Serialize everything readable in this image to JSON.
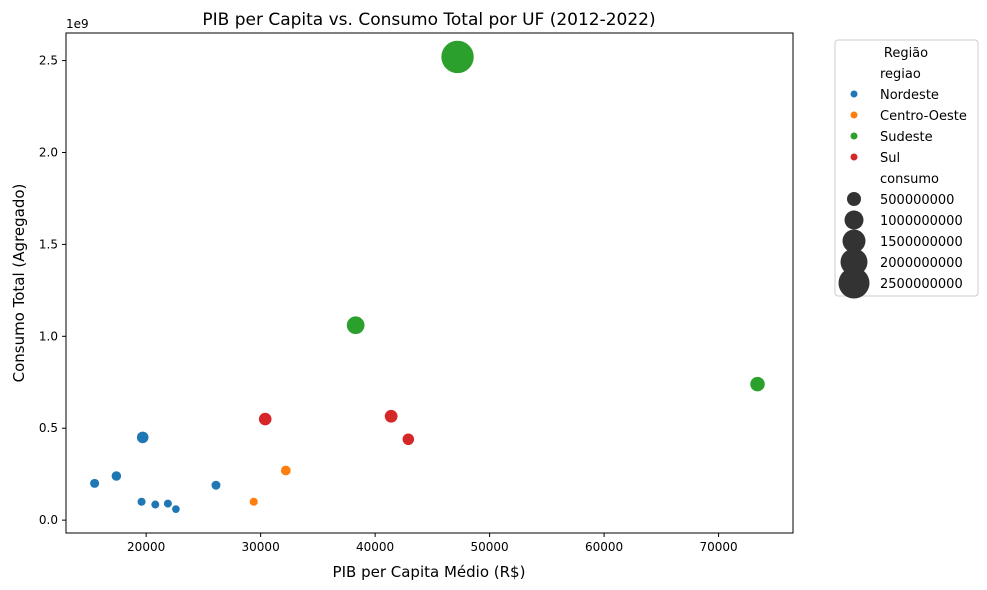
{
  "chart_data": {
    "type": "scatter",
    "title": "PIB per Capita vs. Consumo Total por UF (2012-2022)",
    "xlabel": "PIB per Capita Médio (R$)",
    "ylabel": "Consumo Total (Agregado)",
    "y_offset_label": "1e9",
    "xlim": [
      13000,
      76500
    ],
    "ylim": [
      -0.07,
      2.65
    ],
    "y_multiplier": 1000000000,
    "x_ticks": [
      20000,
      30000,
      40000,
      50000,
      60000,
      70000
    ],
    "y_ticks": [
      0.0,
      0.5,
      1.0,
      1.5,
      2.0,
      2.5
    ],
    "y_tick_labels": [
      "0.0",
      "0.5",
      "1.0",
      "1.5",
      "2.0",
      "2.5"
    ],
    "grid": false,
    "legend": {
      "title": "Região",
      "placement": "outside-right",
      "hue_title": "regiao",
      "size_title": "consumo",
      "size_entries": [
        "500000000",
        "1000000000",
        "1500000000",
        "2000000000",
        "2500000000"
      ],
      "size_values": [
        500000000,
        1000000000,
        1500000000,
        2000000000,
        2500000000
      ]
    },
    "colors": {
      "Nordeste": "#1f77b4",
      "Centro-Oeste": "#ff7f0e",
      "Sudeste": "#2ca02c",
      "Sul": "#d62728"
    },
    "series": [
      {
        "name": "Nordeste",
        "points": [
          {
            "x": 15500,
            "y": 0.2
          },
          {
            "x": 17400,
            "y": 0.24
          },
          {
            "x": 19700,
            "y": 0.45
          },
          {
            "x": 19600,
            "y": 0.1
          },
          {
            "x": 20800,
            "y": 0.085
          },
          {
            "x": 21900,
            "y": 0.09
          },
          {
            "x": 22600,
            "y": 0.06
          },
          {
            "x": 26100,
            "y": 0.19
          }
        ]
      },
      {
        "name": "Centro-Oeste",
        "points": [
          {
            "x": 29400,
            "y": 0.1
          },
          {
            "x": 32200,
            "y": 0.27
          }
        ]
      },
      {
        "name": "Sudeste",
        "points": [
          {
            "x": 38300,
            "y": 1.06
          },
          {
            "x": 47200,
            "y": 2.52
          },
          {
            "x": 73400,
            "y": 0.74
          }
        ]
      },
      {
        "name": "Sul",
        "points": [
          {
            "x": 30400,
            "y": 0.55
          },
          {
            "x": 41400,
            "y": 0.565
          },
          {
            "x": 42900,
            "y": 0.44
          }
        ]
      }
    ]
  }
}
